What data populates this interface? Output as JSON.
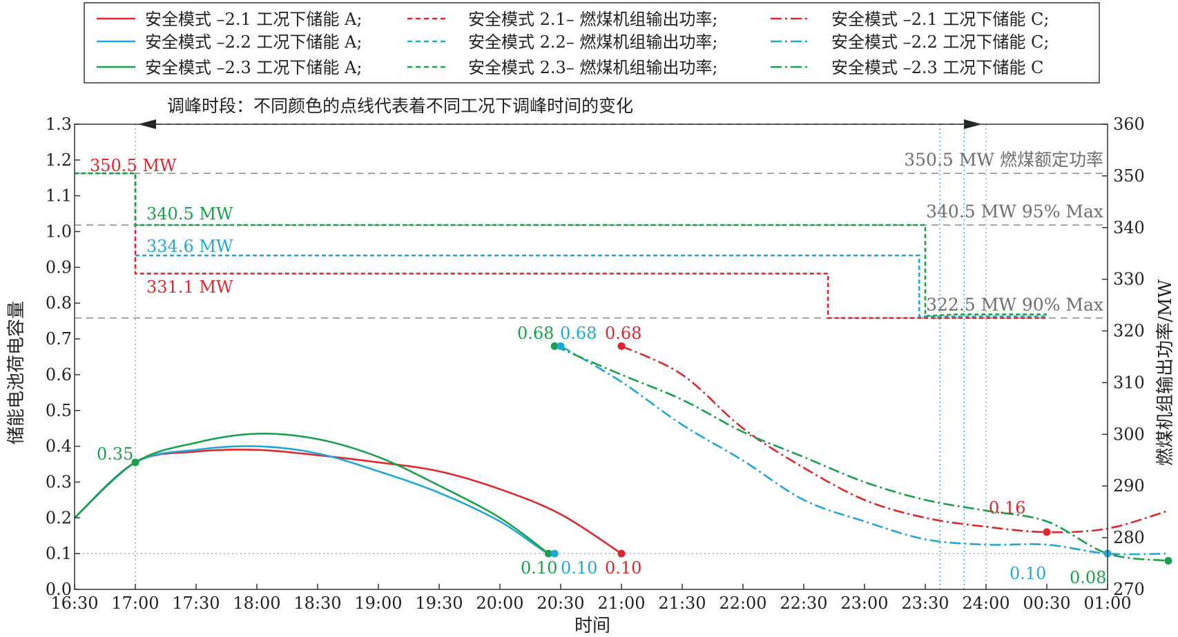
{
  "chart_data": {
    "type": "line",
    "xlabel": "时间",
    "ylabel_left": "储能电池荷电容量",
    "ylabel_right": "燃煤机组输出功率/MW",
    "x_ticks": [
      "16:30",
      "17:00",
      "17:30",
      "18:00",
      "18:30",
      "19:00",
      "19:30",
      "20:00",
      "20:30",
      "21:00",
      "21:30",
      "22:00",
      "22:30",
      "23:00",
      "23:30",
      "24:00",
      "00:30",
      "01:00"
    ],
    "y_left_ticks": [
      "0.0",
      "0.1",
      "0.2",
      "0.3",
      "0.4",
      "0.5",
      "0.6",
      "0.7",
      "0.8",
      "0.9",
      "1.0",
      "1.1",
      "1.2",
      "1.3"
    ],
    "y_right_ticks": [
      "270",
      "280",
      "290",
      "300",
      "310",
      "320",
      "330",
      "340",
      "350",
      "360"
    ],
    "ylim_left": [
      0,
      1.3
    ],
    "ylim_right": [
      270,
      360
    ],
    "colors": {
      "m21": "#e0262b",
      "m22": "#1ea7dc",
      "m23": "#17a14a",
      "ref": "#7f7f7f"
    },
    "legend": [
      [
        "安全模式 –2.1 工况下储能 A;",
        "安全模式 2.1– 燃煤机组输出功率;",
        "安全模式 –2.1 工况下储能 C;"
      ],
      [
        "安全模式 –2.2 工况下储能 A;",
        "安全模式 2.2– 燃煤机组输出功率;",
        "安全模式 –2.2 工况下储能 C;"
      ],
      [
        "安全模式 –2.3 工况下储能 A;",
        "安全模式 2.3– 燃煤机组输出功率;",
        "安全模式 –2.3 工况下储能 C"
      ]
    ],
    "peak_period_label": "调峰时段：不同颜色的点线代表着不同工况下调峰时间的变化",
    "reference_lines": [
      {
        "label": "350.5 MW 燃煤额定功率",
        "value": 350.5
      },
      {
        "label": "340.5 MW 95% Max",
        "value": 340.5
      },
      {
        "label": "322.5 MW 90% Max",
        "value": 322.5
      }
    ],
    "annotations": {
      "coal_m21_start": "350.5 MW",
      "coal_m23": "340.5 MW",
      "coal_m22": "334.6 MW",
      "coal_m21": "331.1 MW",
      "a_start": "0.35",
      "m23_a_end": "0.10",
      "m22_a_end": "0.10",
      "m21_a_end": "0.10",
      "m23_c_start": "0.68",
      "m22_c_start": "0.68",
      "m21_c_start": "0.68",
      "m21_c_min": "0.16",
      "m22_c_end": "0.10",
      "m23_c_end": "0.08"
    },
    "series": [
      {
        "key": "m21",
        "kind": "A",
        "axis": "left",
        "points": [
          [
            0,
            0.2
          ],
          [
            0.5,
            0.355
          ],
          [
            1.0,
            0.385
          ],
          [
            1.5,
            0.39
          ],
          [
            2.0,
            0.375
          ],
          [
            2.5,
            0.355
          ],
          [
            3.0,
            0.33
          ],
          [
            3.5,
            0.28
          ],
          [
            4.0,
            0.21
          ],
          [
            4.5,
            0.1
          ]
        ]
      },
      {
        "key": "m22",
        "kind": "A",
        "axis": "left",
        "points": [
          [
            0,
            0.2
          ],
          [
            0.5,
            0.355
          ],
          [
            1.0,
            0.39
          ],
          [
            1.5,
            0.4
          ],
          [
            2.0,
            0.38
          ],
          [
            2.5,
            0.33
          ],
          [
            3.0,
            0.27
          ],
          [
            3.5,
            0.19
          ],
          [
            3.85,
            0.11
          ],
          [
            3.95,
            0.1
          ]
        ]
      },
      {
        "key": "m23",
        "kind": "A",
        "axis": "left",
        "points": [
          [
            0,
            0.2
          ],
          [
            0.5,
            0.355
          ],
          [
            1.0,
            0.41
          ],
          [
            1.5,
            0.435
          ],
          [
            2.0,
            0.42
          ],
          [
            2.5,
            0.37
          ],
          [
            3.0,
            0.29
          ],
          [
            3.5,
            0.2
          ],
          [
            3.9,
            0.1
          ]
        ]
      },
      {
        "key": "m21",
        "kind": "coal",
        "axis": "right",
        "points": [
          [
            0,
            350.5
          ],
          [
            0.5,
            350.5
          ],
          [
            0.5,
            331.1
          ],
          [
            6.2,
            331.1
          ],
          [
            6.2,
            322.5
          ],
          [
            8.0,
            322.5
          ]
        ]
      },
      {
        "key": "m22",
        "kind": "coal",
        "axis": "right",
        "points": [
          [
            0.5,
            334.6
          ],
          [
            6.95,
            334.6
          ],
          [
            6.95,
            322.8
          ],
          [
            8.0,
            322.8
          ]
        ]
      },
      {
        "key": "m23",
        "kind": "coal",
        "axis": "right",
        "points": [
          [
            0,
            350.5
          ],
          [
            0.5,
            350.5
          ],
          [
            0.5,
            340.5
          ],
          [
            7.0,
            340.5
          ],
          [
            7.0,
            322.9
          ],
          [
            7.25,
            323.2
          ],
          [
            8.0,
            323.2
          ]
        ]
      },
      {
        "key": "m21",
        "kind": "C",
        "axis": "left",
        "points": [
          [
            4.5,
            0.68
          ],
          [
            5.0,
            0.6
          ],
          [
            5.5,
            0.45
          ],
          [
            6.0,
            0.34
          ],
          [
            6.5,
            0.25
          ],
          [
            7.0,
            0.2
          ],
          [
            7.5,
            0.175
          ],
          [
            8.0,
            0.16
          ],
          [
            8.5,
            0.17
          ],
          [
            9.0,
            0.22
          ]
        ]
      },
      {
        "key": "m22",
        "kind": "C",
        "axis": "left",
        "points": [
          [
            4.0,
            0.68
          ],
          [
            4.5,
            0.58
          ],
          [
            5.0,
            0.46
          ],
          [
            5.5,
            0.36
          ],
          [
            6.0,
            0.25
          ],
          [
            6.5,
            0.19
          ],
          [
            7.0,
            0.14
          ],
          [
            7.5,
            0.125
          ],
          [
            8.0,
            0.125
          ],
          [
            8.5,
            0.1
          ],
          [
            9.0,
            0.1
          ]
        ]
      },
      {
        "key": "m23",
        "kind": "C",
        "axis": "left",
        "points": [
          [
            3.95,
            0.68
          ],
          [
            4.5,
            0.6
          ],
          [
            5.0,
            0.53
          ],
          [
            5.5,
            0.44
          ],
          [
            6.0,
            0.37
          ],
          [
            6.5,
            0.3
          ],
          [
            7.0,
            0.25
          ],
          [
            7.5,
            0.22
          ],
          [
            8.0,
            0.19
          ],
          [
            8.5,
            0.1
          ],
          [
            9.0,
            0.08
          ]
        ]
      }
    ]
  }
}
